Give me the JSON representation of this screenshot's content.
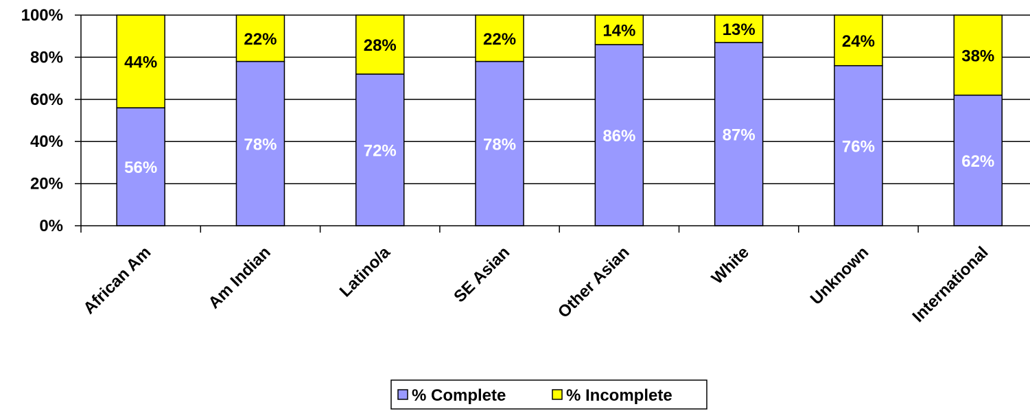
{
  "chart_data": {
    "type": "bar",
    "stacked": true,
    "percent_stacked": true,
    "categories": [
      "African Am",
      "Am Indian",
      "Latino/a",
      "SE Asian",
      "Other Asian",
      "White",
      "Unknown",
      "International"
    ],
    "series": [
      {
        "name": "% Complete",
        "values": [
          56,
          78,
          72,
          78,
          86,
          87,
          76,
          62
        ],
        "labels": [
          "56%",
          "78%",
          "72%",
          "78%",
          "86%",
          "87%",
          "76%",
          "62%"
        ],
        "color": "#9999FF",
        "label_color": "#FFFFFF"
      },
      {
        "name": "% Incomplete",
        "values": [
          44,
          22,
          28,
          22,
          14,
          13,
          24,
          38
        ],
        "labels": [
          "44%",
          "22%",
          "28%",
          "22%",
          "14%",
          "13%",
          "24%",
          "38%"
        ],
        "color": "#FFFF00",
        "label_color": "#000000"
      }
    ],
    "title": "",
    "xlabel": "",
    "ylabel": "",
    "ylim": [
      0,
      100
    ],
    "yticks": [
      "0%",
      "20%",
      "40%",
      "60%",
      "80%",
      "100%"
    ],
    "grid": true,
    "legend_position": "bottom"
  }
}
